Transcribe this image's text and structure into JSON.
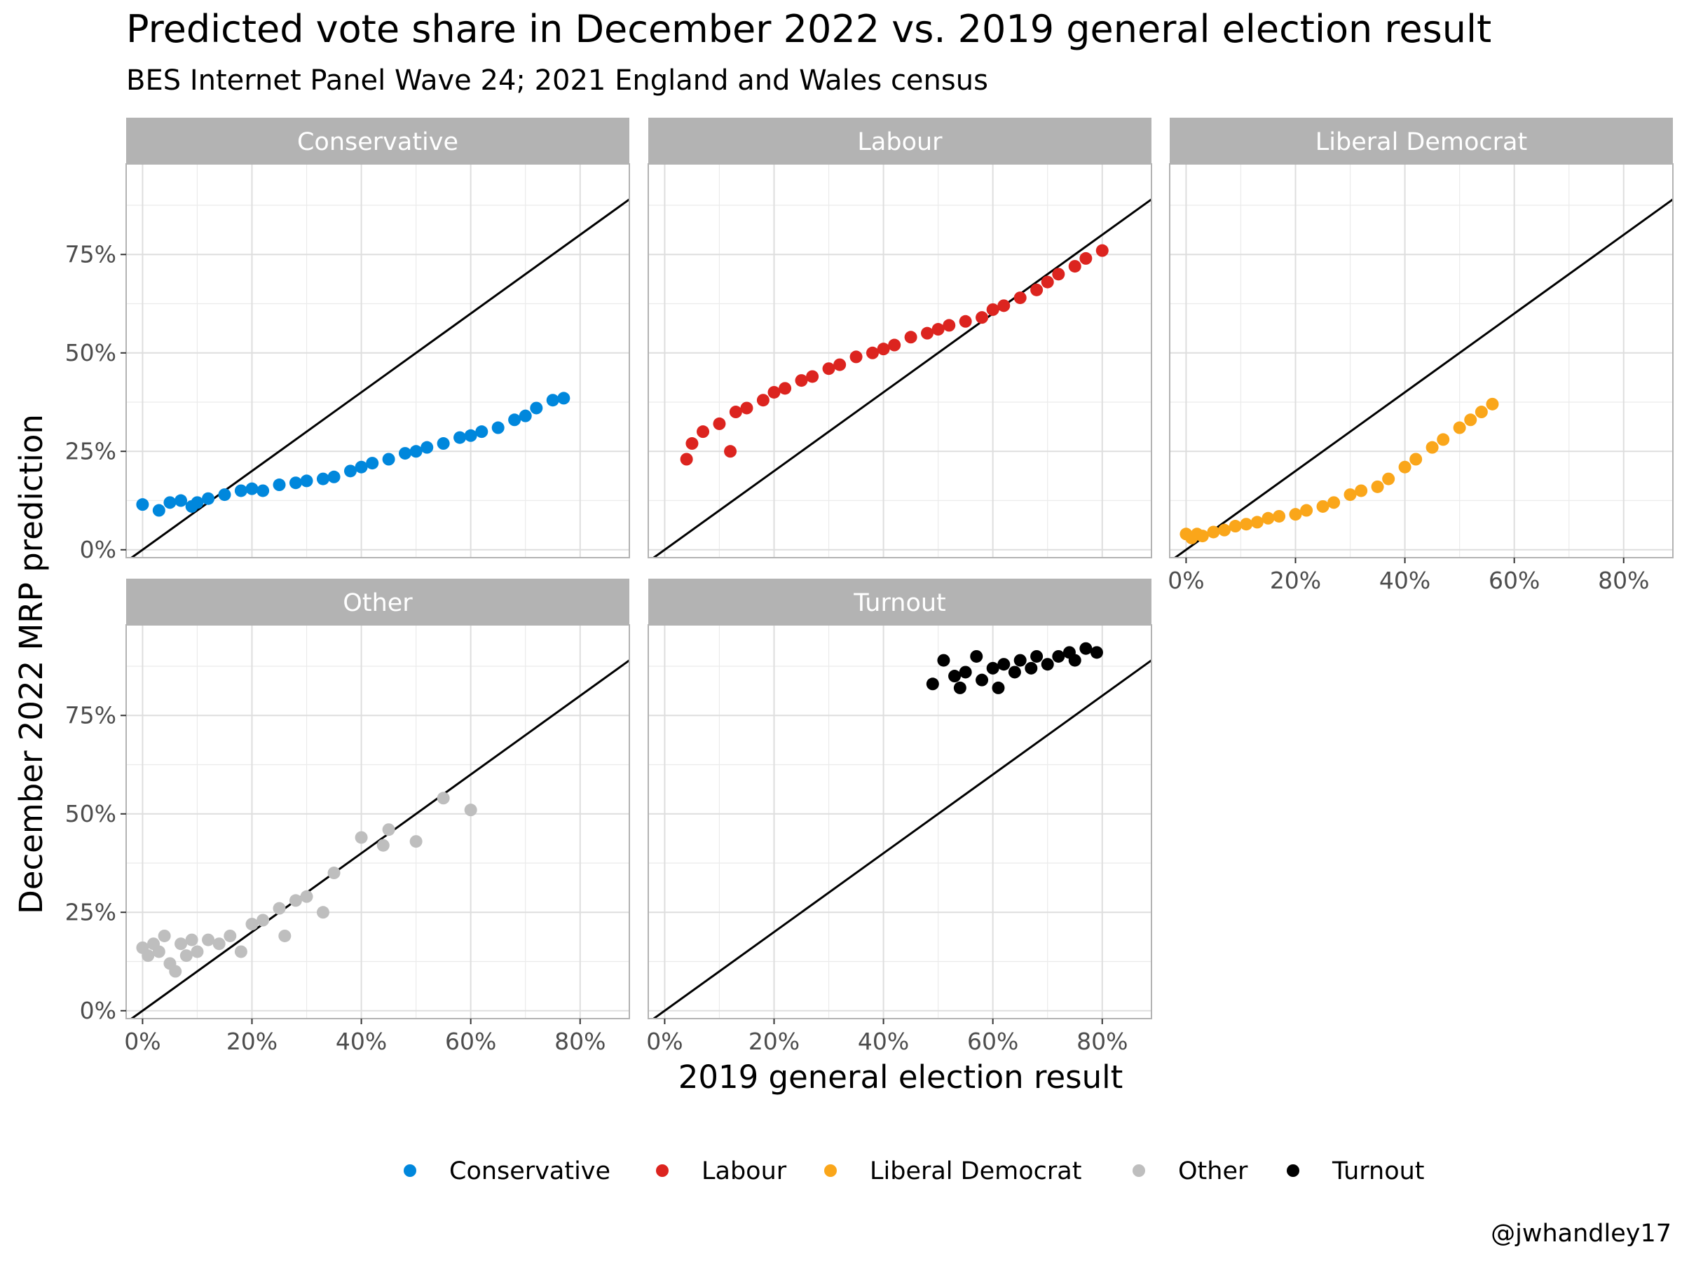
{
  "title": "Predicted vote share in December 2022 vs. 2019 general election result",
  "subtitle": "BES Internet Panel Wave 24; 2021 England and Wales census",
  "caption": "@jwhandley17",
  "xlabel": "2019 general election result",
  "ylabel": "December 2022 MRP prediction",
  "x_ticks": [
    "0%",
    "20%",
    "40%",
    "60%",
    "80%"
  ],
  "y_ticks": [
    "0%",
    "25%",
    "50%",
    "75%"
  ],
  "legend_title": "",
  "legend": [
    {
      "label": "Conservative",
      "color": "#0087DC"
    },
    {
      "label": "Labour",
      "color": "#DC241F"
    },
    {
      "label": "Liberal Democrat",
      "color": "#FAA61A"
    },
    {
      "label": "Other",
      "color": "#BEBEBE"
    },
    {
      "label": "Turnout",
      "color": "#000000"
    }
  ],
  "chart_data": {
    "type": "scatter",
    "facets": true,
    "title": "Predicted vote share in December 2022 vs. 2019 general election result",
    "subtitle": "BES Internet Panel Wave 24; 2021 England and Wales census",
    "xlabel": "2019 general election result",
    "ylabel": "December 2022 MRP prediction",
    "xlim": [
      -3,
      89
    ],
    "ylim": [
      -2,
      98
    ],
    "reference_line": "y = x",
    "grid": true,
    "legend_position": "bottom",
    "series": [
      {
        "name": "Conservative",
        "color": "#0087DC",
        "x": [
          0,
          3,
          5,
          7,
          9,
          10,
          12,
          15,
          18,
          20,
          22,
          25,
          28,
          30,
          33,
          35,
          38,
          40,
          42,
          45,
          48,
          50,
          52,
          55,
          58,
          60,
          62,
          65,
          68,
          70,
          72,
          75,
          77
        ],
        "y": [
          11.5,
          10,
          12,
          12.5,
          11,
          12,
          13,
          14,
          15,
          15.5,
          15,
          16.5,
          17,
          17.5,
          18,
          18.5,
          20,
          21,
          22,
          23,
          24.5,
          25,
          26,
          27,
          28.5,
          29,
          30,
          31,
          33,
          34,
          36,
          38,
          38.5
        ]
      },
      {
        "name": "Labour",
        "color": "#DC241F",
        "x": [
          4,
          5,
          7,
          10,
          12,
          13,
          15,
          18,
          20,
          22,
          25,
          27,
          30,
          32,
          35,
          38,
          40,
          42,
          45,
          48,
          50,
          52,
          55,
          58,
          60,
          62,
          65,
          68,
          70,
          72,
          75,
          77,
          80
        ],
        "y": [
          23,
          27,
          30,
          32,
          25,
          35,
          36,
          38,
          40,
          41,
          43,
          44,
          46,
          47,
          49,
          50,
          51,
          52,
          54,
          55,
          56,
          57,
          58,
          59,
          61,
          62,
          64,
          66,
          68,
          70,
          72,
          74,
          76
        ]
      },
      {
        "name": "Liberal Democrat",
        "color": "#FAA61A",
        "x": [
          0,
          1,
          2,
          3,
          5,
          7,
          9,
          11,
          13,
          15,
          17,
          20,
          22,
          25,
          27,
          30,
          32,
          35,
          37,
          40,
          42,
          45,
          47,
          50,
          52,
          54,
          56
        ],
        "y": [
          4,
          3,
          4,
          3.5,
          4.5,
          5,
          6,
          6.5,
          7,
          8,
          8.5,
          9,
          10,
          11,
          12,
          14,
          15,
          16,
          18,
          21,
          23,
          26,
          28,
          31,
          33,
          35,
          37
        ]
      },
      {
        "name": "Other",
        "color": "#BEBEBE",
        "x": [
          0,
          1,
          2,
          3,
          4,
          5,
          6,
          7,
          8,
          9,
          10,
          12,
          14,
          16,
          18,
          20,
          22,
          25,
          26,
          28,
          30,
          33,
          35,
          40,
          44,
          45,
          50,
          55,
          60
        ],
        "y": [
          16,
          14,
          17,
          15,
          19,
          12,
          10,
          17,
          14,
          18,
          15,
          18,
          17,
          19,
          15,
          22,
          23,
          26,
          19,
          28,
          29,
          25,
          35,
          44,
          42,
          46,
          43,
          54,
          51
        ]
      },
      {
        "name": "Turnout",
        "color": "#000000",
        "x": [
          49,
          51,
          53,
          54,
          55,
          57,
          58,
          60,
          61,
          62,
          64,
          65,
          67,
          68,
          70,
          72,
          74,
          75,
          77,
          79
        ],
        "y": [
          83,
          89,
          85,
          82,
          86,
          90,
          84,
          87,
          82,
          88,
          86,
          89,
          87,
          90,
          88,
          90,
          91,
          89,
          92,
          91
        ]
      }
    ]
  }
}
